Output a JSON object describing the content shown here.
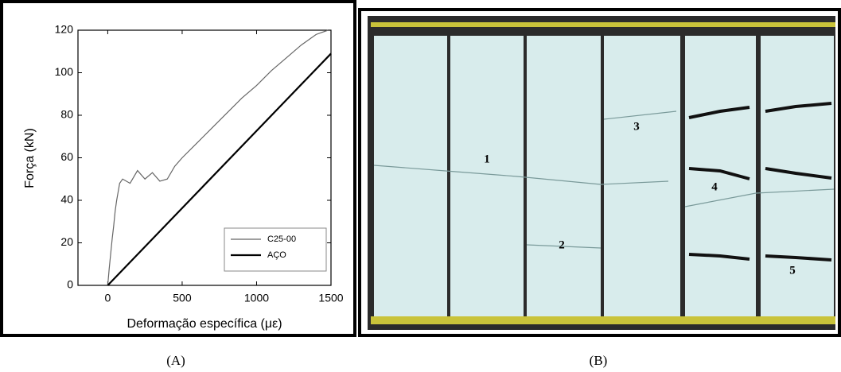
{
  "chart_data": {
    "type": "line",
    "x_label": "Deformação específica (με)",
    "y_label": "Força (kN)",
    "xlim": [
      -200,
      1500
    ],
    "ylim": [
      0,
      120
    ],
    "xticks": [
      0,
      500,
      1000,
      1500
    ],
    "yticks": [
      0,
      20,
      40,
      60,
      80,
      100,
      120
    ],
    "legend": "lower right",
    "series": [
      {
        "name": "C25-00",
        "color": "#666666",
        "x": [
          0,
          10,
          20,
          30,
          40,
          50,
          60,
          70,
          80,
          90,
          100,
          150,
          200,
          250,
          300,
          350,
          400,
          450,
          500,
          600,
          700,
          800,
          900,
          1000,
          1100,
          1200,
          1300,
          1400,
          1480
        ],
        "values": [
          0,
          8,
          15,
          22,
          28,
          35,
          40,
          44,
          48,
          49,
          50,
          48,
          54,
          50,
          53,
          49,
          50,
          56,
          60,
          67,
          74,
          81,
          88,
          94,
          101,
          107,
          113,
          118,
          120
        ]
      },
      {
        "name": "AÇO",
        "color": "#000000",
        "x": [
          0,
          1500
        ],
        "values": [
          0,
          109
        ]
      }
    ]
  },
  "panel_labels": [
    "(A)",
    "(B)"
  ],
  "photo_labels": [
    "1",
    "2",
    "3",
    "4",
    "5"
  ]
}
